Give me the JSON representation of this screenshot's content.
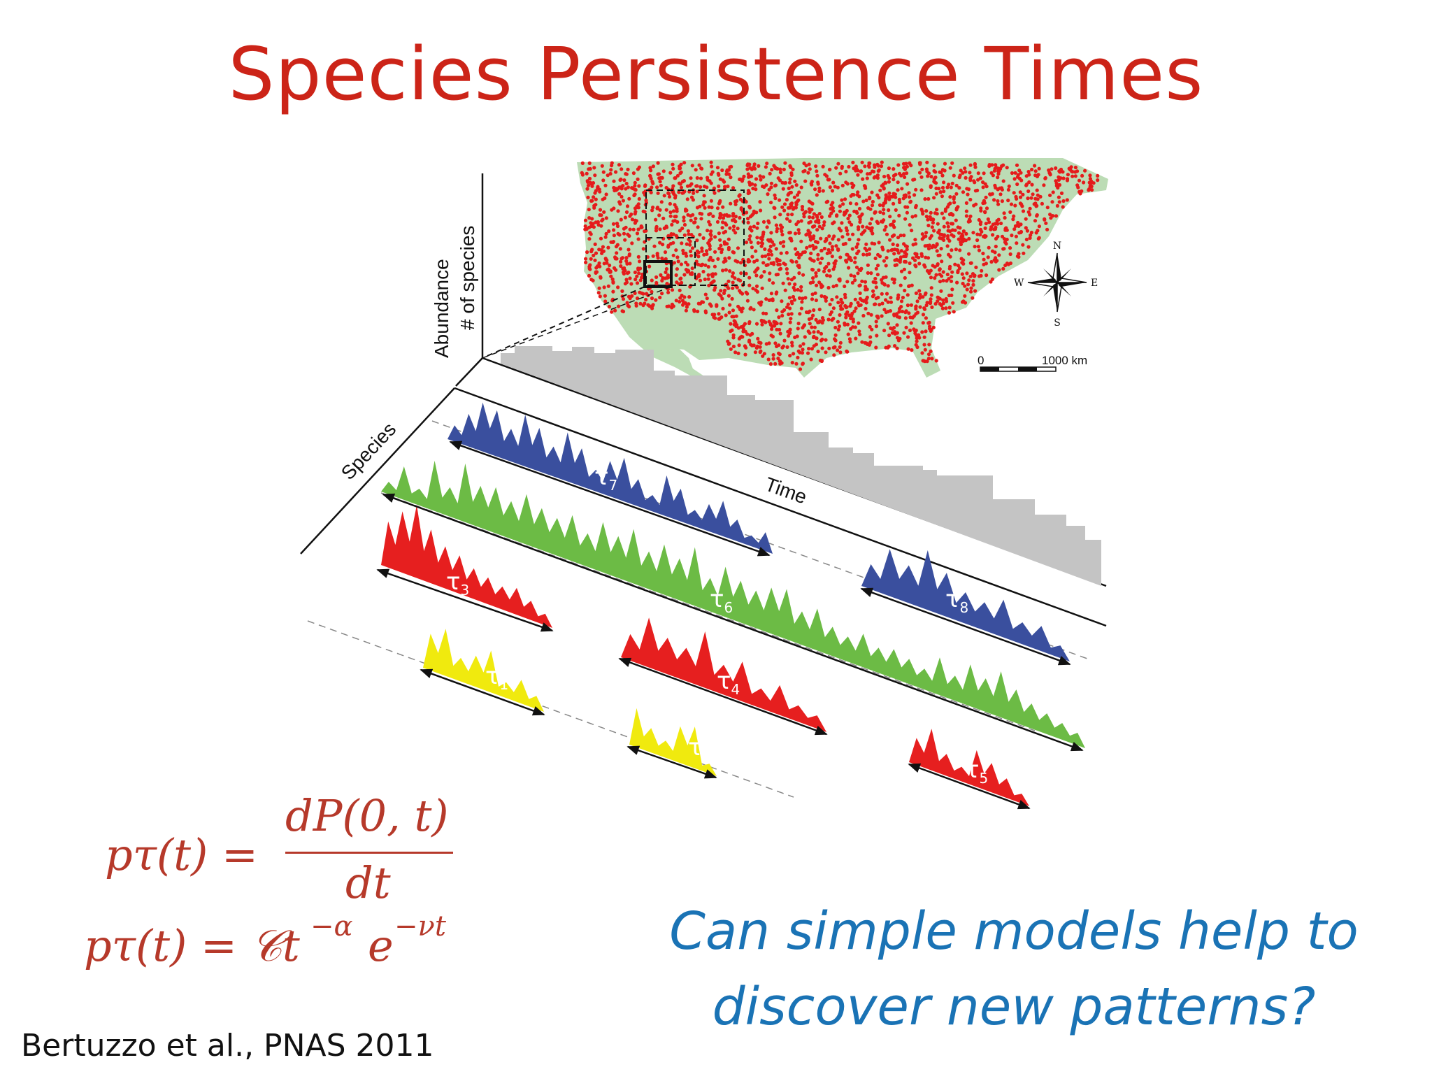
{
  "title": "Species Persistence Times",
  "figure": {
    "axis_labels": {
      "abundance": "Abundance",
      "num_species": "# of species",
      "species": "Species",
      "time": "Time"
    },
    "compass": {
      "north": "N",
      "south": "S",
      "east": "E",
      "west": "W"
    },
    "scale_bar": {
      "start": "0",
      "end": "1000 km"
    },
    "map_colors": {
      "land": "#bcdcb5",
      "sites": "#e51b1b"
    },
    "species_colors": {
      "blue": "#3a4f9e",
      "green": "#6cbb45",
      "red": "#e61f1f",
      "yellow": "#f0ea0e",
      "gray": "#c4c4c4"
    },
    "taus": [
      {
        "symbol": "τ",
        "sub": "1",
        "color": "yellow"
      },
      {
        "symbol": "τ",
        "sub": "2",
        "color": "yellow"
      },
      {
        "symbol": "τ",
        "sub": "3",
        "color": "red"
      },
      {
        "symbol": "τ",
        "sub": "4",
        "color": "red"
      },
      {
        "symbol": "τ",
        "sub": "5",
        "color": "red"
      },
      {
        "symbol": "τ",
        "sub": "6",
        "color": "green"
      },
      {
        "symbol": "τ",
        "sub": "7",
        "color": "blue"
      },
      {
        "symbol": "τ",
        "sub": "8",
        "color": "blue"
      }
    ]
  },
  "equations": {
    "eq1_lhs": "pτ(t) =",
    "eq1_num": "dP(0, t)",
    "eq1_den": "dt",
    "eq2_lhs": "pτ(t) = 𝒞t",
    "eq2_exp1": "−α",
    "eq2_e": "e",
    "eq2_exp2": "−νt"
  },
  "question": "Can simple models help to discover new patterns?",
  "citation": "Bertuzzo et al., PNAS 2011"
}
